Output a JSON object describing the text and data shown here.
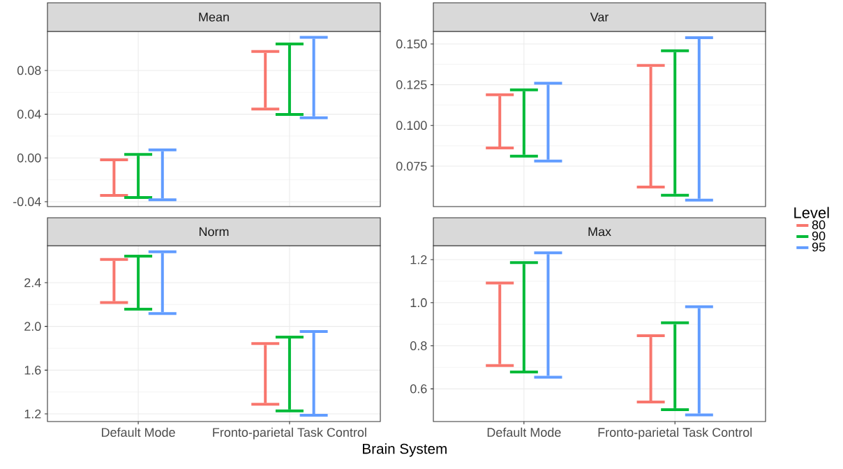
{
  "chart_data": [
    {
      "type": "bar",
      "title": "Mean",
      "categories": [
        null,
        null
      ],
      "grid": true,
      "tick_labels": "y",
      "ylim": [
        -0.0445,
        0.1157
      ],
      "yticks": [
        {
          "value": -0.04,
          "label": "-0.04"
        },
        {
          "value": 0,
          "label": "0.00"
        },
        0.04,
        0.08
      ],
      "series": [
        {
          "color": "#f8766d",
          "base": [
            -0.033,
            0.046
          ],
          "values": [
            0.03,
            0.05
          ]
        },
        {
          "color": "#00ba38",
          "base": [
            -0.035,
            0.041
          ],
          "values": [
            0.037,
            0.062
          ]
        },
        {
          "color": "#619cff",
          "base": [
            -0.037,
            0.038
          ],
          "values": [
            0.043,
            0.071
          ]
        }
      ]
    },
    {
      "type": "bar",
      "title": "Var",
      "categories": [
        null,
        null
      ],
      "grid": true,
      "tick_labels": "y",
      "ylim": [
        0.0502,
        0.1577
      ],
      "yticks": [
        0.075,
        {
          "value": 0.1,
          "label": "0.100"
        },
        0.125,
        {
          "value": 0.15,
          "label": "0.150"
        }
      ],
      "series": [
        {
          "color": "#f8766d",
          "base": [
            0.087,
            0.063
          ],
          "values": [
            0.031,
            0.073
          ]
        },
        {
          "color": "#00ba38",
          "base": [
            0.082,
            0.058
          ],
          "values": [
            0.039,
            0.087
          ]
        },
        {
          "color": "#619cff",
          "base": [
            0.079,
            0.055
          ],
          "values": [
            0.046,
            0.098
          ]
        }
      ]
    },
    {
      "type": "bar",
      "title": "Norm",
      "xlabel": "Brain System",
      "categories": [
        "Default Mode",
        "Fronto-parietal Task Control"
      ],
      "grid": true,
      "ylim": [
        1.13,
        2.738
      ],
      "yticks": [
        1.2,
        1.6,
        {
          "value": 2,
          "label": "2.0"
        },
        2.4
      ],
      "series": [
        {
          "color": "#f8766d",
          "base": [
            2.23,
            1.3
          ],
          "values": [
            0.37,
            0.53
          ]
        },
        {
          "color": "#00ba38",
          "base": [
            2.17,
            1.24
          ],
          "values": [
            0.46,
            0.65
          ]
        },
        {
          "color": "#619cff",
          "base": [
            2.13,
            1.2
          ],
          "values": [
            0.54,
            0.74
          ]
        }
      ]
    },
    {
      "type": "bar",
      "title": "Max",
      "legend": "right",
      "legend_title": "Level",
      "categories": [
        "Default Mode",
        "Fronto-parietal Task Control"
      ],
      "grid": true,
      "ylim": [
        0.448,
        1.265
      ],
      "yticks": [
        0.6,
        0.8,
        {
          "value": 1,
          "label": "1.0"
        },
        1.2
      ],
      "series": [
        {
          "name": "80",
          "color": "#f8766d",
          "base": [
            0.715,
            0.545
          ],
          "values": [
            0.37,
            0.295
          ]
        },
        {
          "name": "90",
          "color": "#00ba38",
          "base": [
            0.685,
            0.51
          ],
          "values": [
            0.495,
            0.39
          ]
        },
        {
          "name": "95",
          "color": "#619cff",
          "base": [
            0.66,
            0.485
          ],
          "values": [
            0.565,
            0.49
          ]
        }
      ]
    }
  ]
}
